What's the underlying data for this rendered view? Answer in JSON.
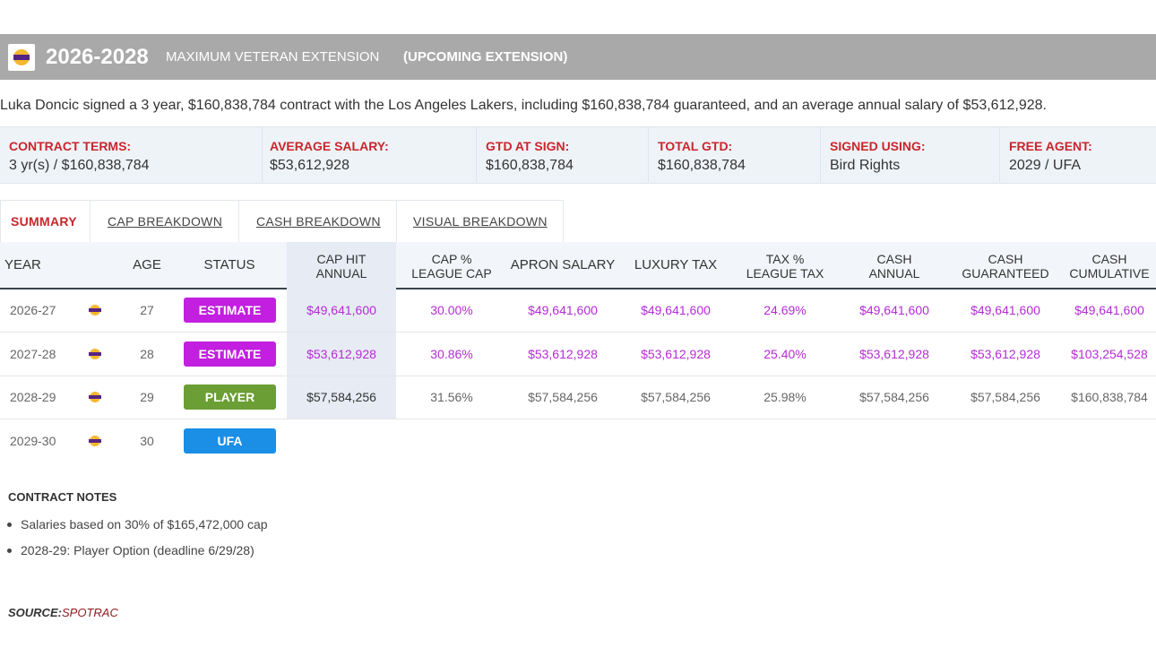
{
  "header": {
    "years": "2026-2028",
    "title": "MAXIMUM VETERAN EXTENSION",
    "subtitle": "(UPCOMING EXTENSION)"
  },
  "summary": "Luka Doncic signed a 3 year, $160,838,784 contract with the Los Angeles Lakers, including $160,838,784 guaranteed, and an average annual salary of $53,612,928.",
  "terms": [
    {
      "label": "CONTRACT TERMS:",
      "value": "3 yr(s) / $160,838,784"
    },
    {
      "label": "AVERAGE SALARY:",
      "value": "$53,612,928"
    },
    {
      "label": "GTD AT SIGN:",
      "value": "$160,838,784"
    },
    {
      "label": "TOTAL GTD:",
      "value": "$160,838,784"
    },
    {
      "label": "SIGNED USING:",
      "value": "Bird Rights"
    },
    {
      "label": "FREE AGENT:",
      "value": "2029 / UFA"
    }
  ],
  "tabs": [
    "SUMMARY",
    "CAP BREAKDOWN",
    "CASH BREAKDOWN",
    "VISUAL BREAKDOWN"
  ],
  "table": {
    "headers": [
      [
        "YEAR"
      ],
      [],
      [
        "AGE"
      ],
      [
        "STATUS"
      ],
      [
        "CAP HIT",
        "ANNUAL"
      ],
      [
        "CAP %",
        "LEAGUE CAP"
      ],
      [
        "APRON SALARY"
      ],
      [
        "LUXURY TAX"
      ],
      [
        "TAX %",
        "LEAGUE TAX"
      ],
      [
        "CASH",
        "ANNUAL"
      ],
      [
        "CASH",
        "GUARANTEED"
      ],
      [
        "CASH",
        "CUMULATIVE"
      ]
    ],
    "rows": [
      {
        "year": "2026-27",
        "age": "27",
        "status": "ESTIMATE",
        "status_color": "#c21fe0",
        "value_color": "#b52bd6",
        "values": [
          "$49,641,600",
          "30.00%",
          "$49,641,600",
          "$49,641,600",
          "24.69%",
          "$49,641,600",
          "$49,641,600",
          "$49,641,600"
        ]
      },
      {
        "year": "2027-28",
        "age": "28",
        "status": "ESTIMATE",
        "status_color": "#c21fe0",
        "value_color": "#b52bd6",
        "values": [
          "$53,612,928",
          "30.86%",
          "$53,612,928",
          "$53,612,928",
          "25.40%",
          "$53,612,928",
          "$53,612,928",
          "$103,254,528"
        ]
      },
      {
        "year": "2028-29",
        "age": "29",
        "status": "PLAYER",
        "status_color": "#6b9e34",
        "value_color": "#666666",
        "values": [
          "$57,584,256",
          "31.56%",
          "$57,584,256",
          "$57,584,256",
          "25.98%",
          "$57,584,256",
          "$57,584,256",
          "$160,838,784"
        ]
      },
      {
        "year": "2029-30",
        "age": "30",
        "status": "UFA",
        "status_color": "#1b8ee6",
        "value_color": "#666666",
        "values": []
      }
    ]
  },
  "notes": {
    "title": "CONTRACT NOTES",
    "items": [
      "Salaries based on 30% of $165,472,000 cap",
      "2028-29: Player Option (deadline 6/29/28)"
    ]
  },
  "source": {
    "label": "SOURCE:",
    "value": "SPOTRAC"
  }
}
